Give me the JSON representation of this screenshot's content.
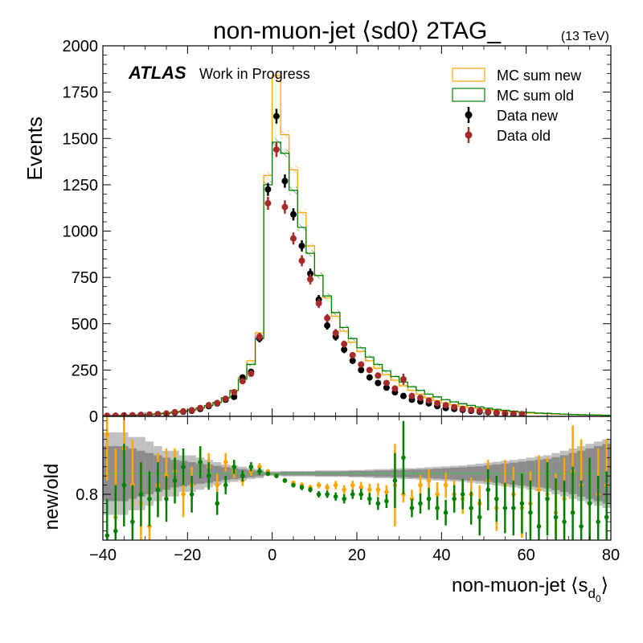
{
  "header": {
    "title": "non-muon-jet ⟨sd0⟩ 2TAG_",
    "energy": "(13 TeV)",
    "atlas": "ATLAS",
    "atlas_suffix": "Work in Progress"
  },
  "axes": {
    "xlabel_main": "non-muon-jet ⟨s",
    "xlabel_sub1": "d",
    "xlabel_sub2": "0",
    "xlabel_close": "⟩",
    "ylabel_top": "Events",
    "ylabel_bottom": "new/old"
  },
  "legend": [
    {
      "label": "MC sum new",
      "kind": "box",
      "color": "#ffa500"
    },
    {
      "label": "MC sum old",
      "kind": "box",
      "color": "#008000"
    },
    {
      "label": "Data new",
      "kind": "marker",
      "color": "#000000"
    },
    {
      "label": "Data old",
      "kind": "marker",
      "color": "#a52a2a"
    }
  ],
  "chart_data": [
    {
      "type": "line",
      "title": "non-muon-jet ⟨sd0⟩ 2TAG_",
      "xlabel": "non-muon-jet ⟨sd0⟩",
      "ylabel": "Events",
      "xlim": [
        -40,
        80
      ],
      "ylim": [
        0,
        2000
      ],
      "xticks": [
        -40,
        -20,
        0,
        20,
        40,
        60,
        80
      ],
      "yticks": [
        0,
        250,
        500,
        750,
        1000,
        1250,
        1500,
        1750,
        2000
      ],
      "bin_edges": [
        -40,
        -38,
        -36,
        -34,
        -32,
        -30,
        -28,
        -26,
        -24,
        -22,
        -20,
        -18,
        -16,
        -14,
        -12,
        -10,
        -8,
        -6,
        -4,
        -2,
        0,
        2,
        4,
        6,
        8,
        10,
        12,
        14,
        16,
        18,
        20,
        22,
        24,
        26,
        28,
        30,
        32,
        34,
        36,
        38,
        40,
        42,
        44,
        46,
        48,
        50,
        52,
        54,
        56,
        58,
        60,
        62,
        64,
        66,
        68,
        70,
        72,
        74,
        76,
        78,
        80
      ],
      "series": [
        {
          "name": "MC sum new",
          "style": "step",
          "color": "#ffa500",
          "values": [
            3,
            4,
            5,
            6,
            8,
            10,
            13,
            17,
            22,
            28,
            35,
            45,
            58,
            75,
            100,
            140,
            210,
            300,
            450,
            1300,
            1840,
            1520,
            1330,
            1100,
            920,
            760,
            640,
            540,
            460,
            400,
            350,
            300,
            260,
            225,
            195,
            165,
            140,
            120,
            100,
            85,
            72,
            62,
            54,
            47,
            41,
            36,
            31,
            27,
            24,
            21,
            18,
            16,
            14,
            12,
            11,
            10,
            9,
            8,
            7,
            6
          ]
        },
        {
          "name": "MC sum old",
          "style": "step",
          "color": "#008000",
          "values": [
            3,
            4,
            5,
            6,
            8,
            10,
            13,
            17,
            22,
            28,
            35,
            45,
            58,
            75,
            100,
            140,
            200,
            280,
            420,
            1250,
            1480,
            1420,
            1220,
            1020,
            880,
            760,
            650,
            560,
            480,
            420,
            370,
            320,
            280,
            245,
            215,
            185,
            160,
            140,
            120,
            105,
            90,
            78,
            68,
            59,
            51,
            44,
            38,
            33,
            28,
            24,
            21,
            18,
            16,
            14,
            12,
            10,
            9,
            8,
            7,
            6
          ]
        },
        {
          "name": "Data new",
          "style": "points",
          "color": "#000000",
          "x": [
            -39,
            -37,
            -35,
            -33,
            -31,
            -29,
            -27,
            -25,
            -23,
            -21,
            -19,
            -17,
            -15,
            -13,
            -11,
            -9,
            -7,
            -5,
            -3,
            -1,
            1,
            3,
            5,
            7,
            9,
            11,
            13,
            15,
            17,
            19,
            21,
            23,
            25,
            27,
            29,
            31,
            33,
            35,
            37,
            39,
            41,
            43,
            45,
            47,
            49,
            51,
            53,
            55,
            57,
            59
          ],
          "values": [
            2,
            3,
            5,
            5,
            7,
            9,
            11,
            14,
            20,
            25,
            30,
            40,
            55,
            70,
            90,
            105,
            210,
            240,
            420,
            1225,
            1620,
            1270,
            1090,
            920,
            770,
            630,
            490,
            430,
            360,
            300,
            250,
            210,
            180,
            155,
            130,
            110,
            90,
            80,
            70,
            55,
            45,
            40,
            35,
            30,
            25,
            22,
            18,
            15,
            12,
            10
          ],
          "yerr": [
            2,
            2,
            2,
            3,
            3,
            3,
            4,
            5,
            6,
            6,
            7,
            8,
            9,
            10,
            11,
            12,
            15,
            16,
            21,
            35,
            40,
            36,
            33,
            30,
            28,
            25,
            22,
            21,
            19,
            17,
            16,
            15,
            14,
            13,
            12,
            11,
            10,
            9,
            9,
            8,
            7,
            7,
            6,
            6,
            5,
            5,
            5,
            4,
            4,
            4
          ]
        },
        {
          "name": "Data old",
          "style": "points",
          "color": "#a52a2a",
          "x": [
            -39,
            -37,
            -35,
            -33,
            -31,
            -29,
            -27,
            -25,
            -23,
            -21,
            -19,
            -17,
            -15,
            -13,
            -11,
            -9,
            -7,
            -5,
            -3,
            -1,
            1,
            3,
            5,
            7,
            9,
            11,
            13,
            15,
            17,
            19,
            21,
            23,
            25,
            27,
            29,
            31,
            33,
            35,
            37,
            39,
            41,
            43,
            45,
            47,
            49,
            51,
            53,
            55,
            57,
            59
          ],
          "values": [
            3,
            3,
            5,
            6,
            8,
            10,
            12,
            15,
            22,
            27,
            33,
            45,
            60,
            72,
            95,
            130,
            190,
            230,
            430,
            1150,
            1440,
            1130,
            960,
            840,
            740,
            610,
            530,
            450,
            390,
            330,
            280,
            250,
            220,
            180,
            150,
            200,
            110,
            100,
            85,
            70,
            60,
            50,
            40,
            35,
            30,
            25,
            20,
            17,
            14,
            12
          ],
          "yerr": [
            2,
            2,
            2,
            3,
            3,
            3,
            4,
            5,
            6,
            6,
            7,
            8,
            9,
            10,
            11,
            12,
            15,
            16,
            21,
            35,
            40,
            36,
            33,
            30,
            28,
            25,
            22,
            21,
            19,
            17,
            16,
            15,
            14,
            13,
            12,
            30,
            10,
            9,
            9,
            8,
            7,
            7,
            6,
            6,
            5,
            5,
            5,
            4,
            4,
            4
          ]
        }
      ]
    },
    {
      "type": "scatter",
      "ylabel": "new/old",
      "xlim": [
        -40,
        80
      ],
      "ylim": [
        0.7,
        0.97
      ],
      "xticks": [
        -40,
        -20,
        0,
        20,
        40,
        60,
        80
      ],
      "yticks": [
        0.8
      ],
      "reference_line": 0.845,
      "band_outer": [
        0.09,
        0.09,
        0.09,
        0.08,
        0.08,
        0.07,
        0.06,
        0.05,
        0.05,
        0.04,
        0.04,
        0.035,
        0.03,
        0.025,
        0.02,
        0.018,
        0.015,
        0.012,
        0.01,
        0.005,
        0.005,
        0.006,
        0.006,
        0.006,
        0.006,
        0.007,
        0.007,
        0.007,
        0.007,
        0.008,
        0.008,
        0.009,
        0.01,
        0.01,
        0.011,
        0.012,
        0.012,
        0.013,
        0.014,
        0.015,
        0.016,
        0.017,
        0.018,
        0.02,
        0.022,
        0.024,
        0.026,
        0.028,
        0.03,
        0.032,
        0.035,
        0.038,
        0.04,
        0.045,
        0.05,
        0.055,
        0.06,
        0.065,
        0.07,
        0.075
      ],
      "band_inner": [
        0.06,
        0.06,
        0.06,
        0.055,
        0.05,
        0.045,
        0.04,
        0.035,
        0.03,
        0.028,
        0.025,
        0.022,
        0.02,
        0.017,
        0.014,
        0.012,
        0.01,
        0.008,
        0.006,
        0.003,
        0.003,
        0.004,
        0.004,
        0.004,
        0.004,
        0.005,
        0.005,
        0.005,
        0.005,
        0.006,
        0.006,
        0.006,
        0.007,
        0.007,
        0.008,
        0.008,
        0.009,
        0.009,
        0.01,
        0.011,
        0.012,
        0.013,
        0.014,
        0.015,
        0.016,
        0.018,
        0.02,
        0.022,
        0.024,
        0.026,
        0.028,
        0.03,
        0.032,
        0.036,
        0.04,
        0.045,
        0.05,
        0.055,
        0.06,
        0.065
      ],
      "series": [
        {
          "name": "MC sum new",
          "color": "#ffa500",
          "x": [
            -39,
            -37,
            -35,
            -33,
            -31,
            -29,
            -27,
            -25,
            -23,
            -21,
            -19,
            -17,
            -15,
            -13,
            -11,
            -9,
            -7,
            -5,
            -3,
            -1,
            1,
            3,
            5,
            7,
            9,
            11,
            13,
            15,
            17,
            19,
            21,
            23,
            25,
            27,
            29,
            31,
            33,
            35,
            37,
            39,
            41,
            43,
            45,
            47,
            49,
            51,
            53,
            55,
            57,
            59,
            61,
            63,
            65,
            67,
            69,
            71,
            73,
            75,
            77,
            79
          ],
          "values": [
            0.93,
            0.75,
            0.9,
            0.82,
            0.78,
            0.73,
            0.82,
            0.84,
            0.85,
            0.8,
            0.82,
            0.87,
            0.86,
            0.82,
            0.87,
            0.85,
            0.83,
            0.85,
            0.86,
            0.85,
            0.84,
            0.83,
            0.825,
            0.82,
            0.815,
            0.82,
            0.815,
            0.82,
            0.81,
            0.82,
            0.815,
            0.81,
            0.81,
            0.805,
            0.82,
            0.8,
            0.79,
            0.82,
            0.83,
            0.8,
            0.82,
            0.8,
            0.79,
            0.8,
            0.78,
            0.83,
            0.77,
            0.82,
            0.8,
            0.77,
            0.78,
            0.81,
            0.8,
            0.76,
            0.79,
            0.85,
            0.82,
            0.78,
            0.8,
            0.82
          ],
          "yerr": [
            0.1,
            0.15,
            0.12,
            0.1,
            0.09,
            0.08,
            0.07,
            0.06,
            0.05,
            0.05,
            0.04,
            0.035,
            0.03,
            0.025,
            0.02,
            0.015,
            0.012,
            0.01,
            0.008,
            0.005,
            0.004,
            0.005,
            0.005,
            0.006,
            0.006,
            0.007,
            0.008,
            0.009,
            0.01,
            0.01,
            0.012,
            0.013,
            0.014,
            0.015,
            0.09,
            0.018,
            0.02,
            0.022,
            0.024,
            0.026,
            0.028,
            0.03,
            0.033,
            0.036,
            0.04,
            0.045,
            0.05,
            0.055,
            0.06,
            0.065,
            0.07,
            0.075,
            0.08,
            0.085,
            0.09,
            0.1,
            0.1,
            0.1,
            0.1,
            0.1
          ]
        },
        {
          "name": "MC sum old",
          "color": "#008000",
          "x": [
            -39,
            -37,
            -35,
            -33,
            -31,
            -29,
            -27,
            -25,
            -23,
            -21,
            -19,
            -17,
            -15,
            -13,
            -11,
            -9,
            -7,
            -5,
            -3,
            -1,
            1,
            3,
            5,
            7,
            9,
            11,
            13,
            15,
            17,
            19,
            21,
            23,
            25,
            27,
            29,
            31,
            33,
            35,
            37,
            39,
            41,
            43,
            45,
            47,
            49,
            51,
            53,
            55,
            57,
            59,
            61,
            63,
            65,
            67,
            69,
            71,
            73,
            75,
            77,
            79
          ],
          "values": [
            0.71,
            0.72,
            0.82,
            0.74,
            0.8,
            0.79,
            0.81,
            0.79,
            0.83,
            0.86,
            0.8,
            0.87,
            0.84,
            0.78,
            0.82,
            0.86,
            0.84,
            0.86,
            0.85,
            0.845,
            0.84,
            0.83,
            0.82,
            0.815,
            0.81,
            0.8,
            0.8,
            0.795,
            0.79,
            0.8,
            0.8,
            0.79,
            0.78,
            0.785,
            0.83,
            0.88,
            0.77,
            0.78,
            0.79,
            0.77,
            0.76,
            0.79,
            0.8,
            0.77,
            0.75,
            0.81,
            0.79,
            0.77,
            0.77,
            0.78,
            0.76,
            0.73,
            0.79,
            0.75,
            0.74,
            0.76,
            0.73,
            0.78,
            0.74,
            0.75
          ],
          "yerr": [
            0.08,
            0.1,
            0.09,
            0.08,
            0.07,
            0.06,
            0.06,
            0.05,
            0.05,
            0.04,
            0.04,
            0.035,
            0.03,
            0.025,
            0.02,
            0.015,
            0.012,
            0.01,
            0.008,
            0.005,
            0.004,
            0.005,
            0.005,
            0.006,
            0.006,
            0.007,
            0.008,
            0.009,
            0.01,
            0.01,
            0.012,
            0.013,
            0.014,
            0.015,
            0.06,
            0.08,
            0.02,
            0.022,
            0.024,
            0.026,
            0.028,
            0.03,
            0.033,
            0.036,
            0.04,
            0.045,
            0.05,
            0.055,
            0.06,
            0.065,
            0.07,
            0.075,
            0.08,
            0.085,
            0.09,
            0.1,
            0.1,
            0.1,
            0.1,
            0.1
          ]
        }
      ]
    }
  ]
}
